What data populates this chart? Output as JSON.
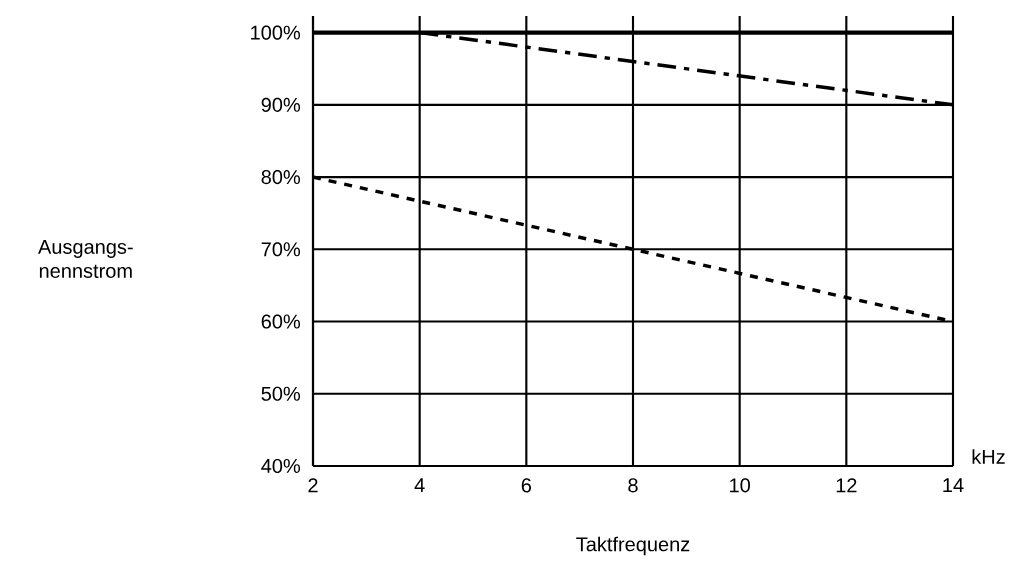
{
  "chart_data": {
    "type": "line",
    "xlabel": "Taktfrequenz",
    "annotations": [
      "kHz",
      "Ausgangs-nennstrom"
    ],
    "xlim": [
      2,
      14
    ],
    "xticks": [
      2,
      4,
      6,
      8,
      10,
      12,
      14
    ],
    "ylim": [
      40,
      102.3
    ],
    "yticks": [
      {
        "value": 40,
        "label": "40%"
      },
      {
        "value": 50,
        "label": "50%"
      },
      {
        "value": 60,
        "label": "60%"
      },
      {
        "value": 70,
        "label": "70%"
      },
      {
        "value": 80,
        "label": "80%"
      },
      {
        "value": 90,
        "label": "90%"
      },
      {
        "value": 100,
        "label": "100%"
      }
    ],
    "grid": true,
    "marker": "none",
    "ref_lines": [
      {
        "axis": "y",
        "value": 100,
        "color": "#000000",
        "line_style": "solid"
      }
    ],
    "series": [
      {
        "color": "#000000",
        "line_style": "dashdot",
        "x": [
          4,
          14
        ],
        "values": [
          100,
          90
        ]
      },
      {
        "color": "#000000",
        "line_style": "dotted",
        "x": [
          2,
          14
        ],
        "values": [
          80,
          60
        ]
      }
    ]
  }
}
